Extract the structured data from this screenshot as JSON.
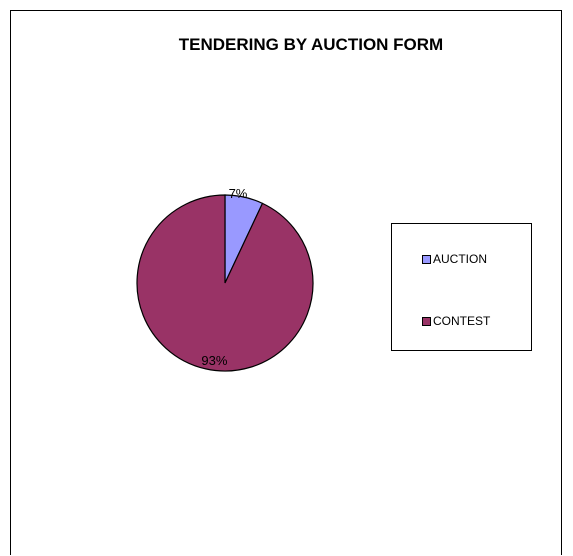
{
  "chart_data": {
    "type": "pie",
    "title": "TENDERING BY AUCTION FORM",
    "categories": [
      "AUCTION",
      "CONTEST"
    ],
    "values": [
      7,
      93
    ],
    "data_labels": [
      "7%",
      "93%"
    ],
    "colors": [
      "#9999ff",
      "#993366"
    ],
    "legend_position": "right"
  }
}
